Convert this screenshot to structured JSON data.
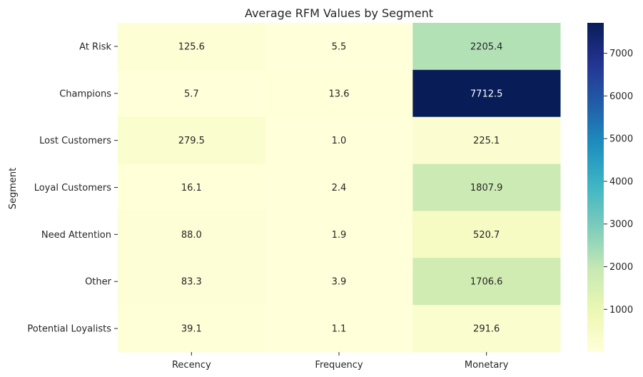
{
  "chart_data": {
    "type": "heatmap",
    "title": "Average RFM Values by Segment",
    "ylabel": "Segment",
    "xlabel": "",
    "columns": [
      "Recency",
      "Frequency",
      "Monetary"
    ],
    "rows": [
      "At Risk",
      "Champions",
      "Lost Customers",
      "Loyal Customers",
      "Need Attention",
      "Other",
      "Potential Loyalists"
    ],
    "values": [
      [
        125.6,
        5.5,
        2205.4
      ],
      [
        5.7,
        13.6,
        7712.5
      ],
      [
        279.5,
        1.0,
        225.1
      ],
      [
        16.1,
        2.4,
        1807.9
      ],
      [
        88.0,
        1.9,
        520.7
      ],
      [
        83.3,
        3.9,
        1706.6
      ],
      [
        39.1,
        1.1,
        291.6
      ]
    ],
    "value_labels": [
      [
        "125.6",
        "5.5",
        "2205.4"
      ],
      [
        "5.7",
        "13.6",
        "7712.5"
      ],
      [
        "279.5",
        "1.0",
        "225.1"
      ],
      [
        "16.1",
        "2.4",
        "1807.9"
      ],
      [
        "88.0",
        "1.9",
        "520.7"
      ],
      [
        "83.3",
        "3.9",
        "1706.6"
      ],
      [
        "39.1",
        "1.1",
        "291.6"
      ]
    ],
    "colormap": "YlGnBu",
    "vmin": 1.0,
    "vmax": 7712.5,
    "colorbar_ticks": [
      1000,
      2000,
      3000,
      4000,
      5000,
      6000,
      7000
    ],
    "colorbar_tick_labels": [
      "1000",
      "2000",
      "3000",
      "4000",
      "5000",
      "6000",
      "7000"
    ],
    "colorbar_position": "right",
    "grid": false
  }
}
